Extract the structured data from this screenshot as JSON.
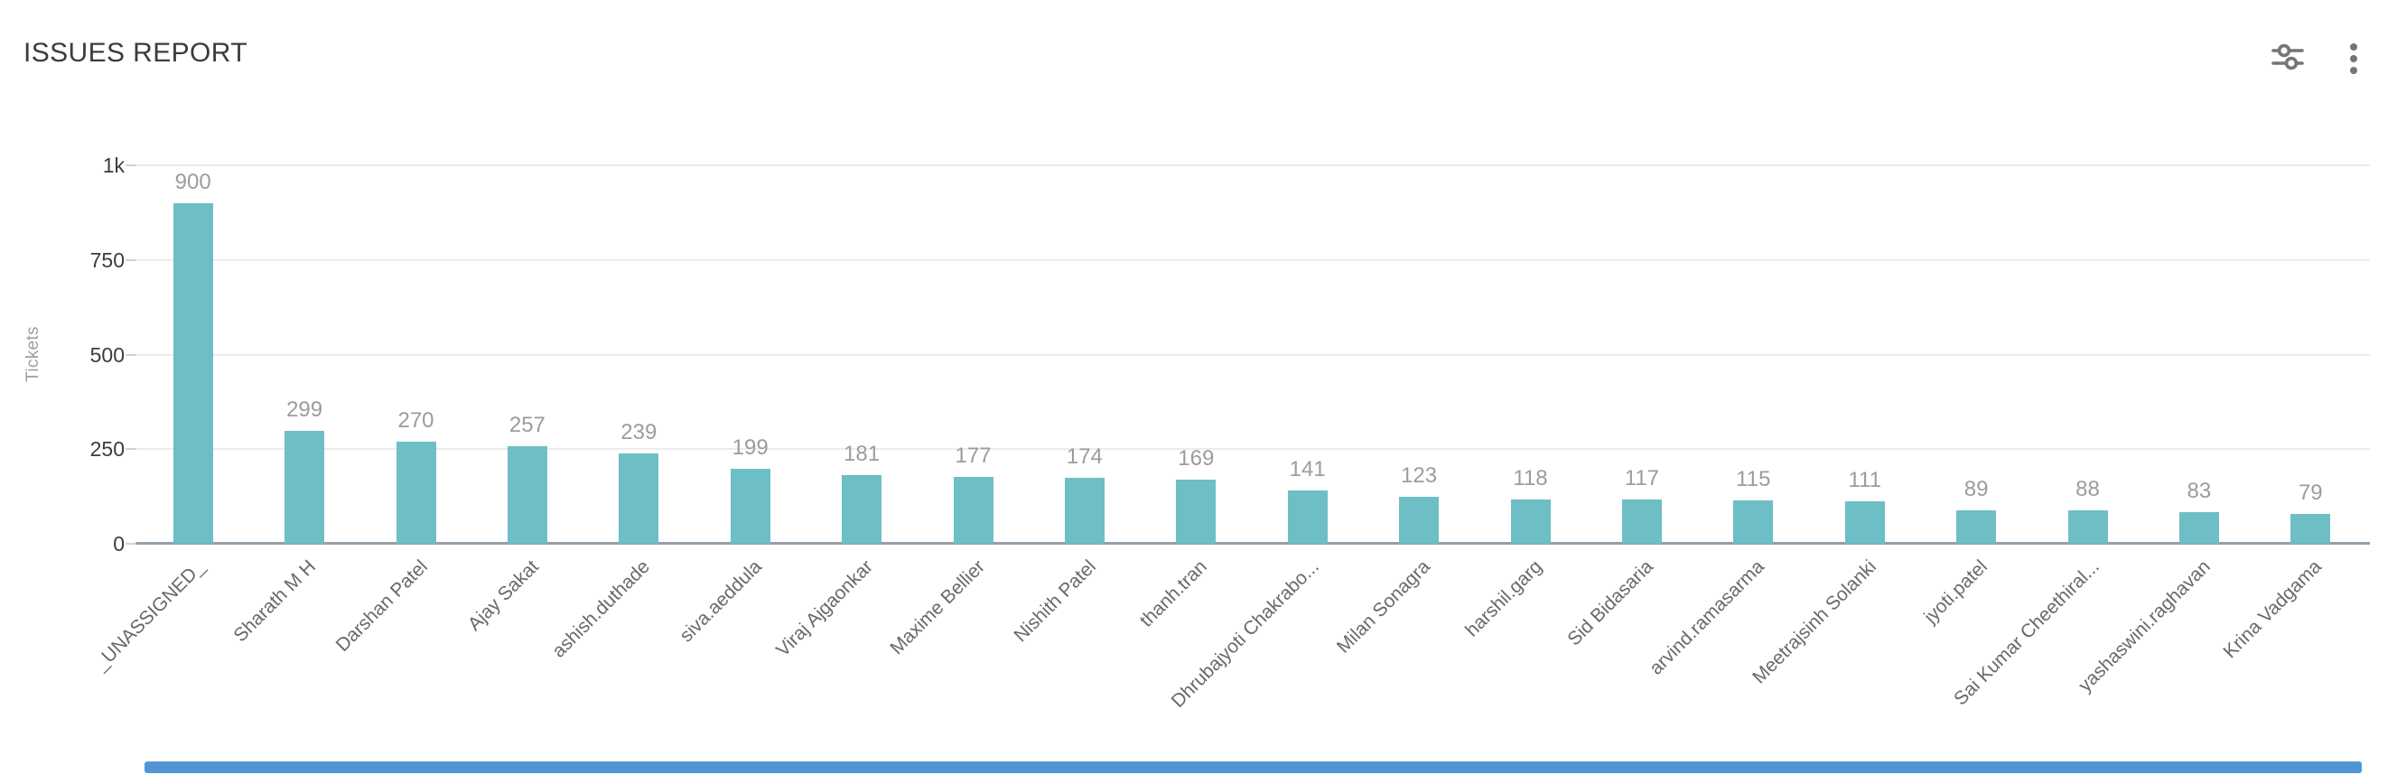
{
  "header": {
    "title": "ISSUES REPORT",
    "filter_icon": "sliders-icon",
    "menu_icon": "kebab-menu-icon"
  },
  "chart_data": {
    "type": "bar",
    "title": "ISSUES REPORT",
    "xlabel": "",
    "ylabel": "Tickets",
    "ylim": [
      0,
      1000
    ],
    "ytick_values": [
      0,
      250,
      500,
      750,
      1000
    ],
    "ytick_labels": [
      "0",
      "250",
      "500",
      "750",
      "1k"
    ],
    "grid": "horizontal",
    "legend": "none",
    "value_labels_shown": true,
    "categories": [
      "_UNASSIGNED_",
      "Sharath M H",
      "Darshan Patel",
      "Ajay Sakat",
      "ashish.duthade",
      "siva.aeddula",
      "Viraj Ajgaonkar",
      "Maxime Bellier",
      "Nishith Patel",
      "thanh.tran",
      "Dhrubajyoti Chakrabo...",
      "Milan Sonagra",
      "harshil.garg",
      "Sid Bidasaria",
      "arvind.ramasarma",
      "Meetrajsinh Solanki",
      "jyoti.patel",
      "Sai Kumar Cheethiral...",
      "yashaswini.raghavan",
      "Krina Vadgama"
    ],
    "values": [
      900,
      299,
      270,
      257,
      239,
      199,
      181,
      177,
      174,
      169,
      141,
      123,
      118,
      117,
      115,
      111,
      89,
      88,
      83,
      79
    ]
  },
  "colors": {
    "background": "#ffffff",
    "bar": "#6ebec6",
    "axis_line": "#93a0ab",
    "gridline": "#ececec",
    "title_text": "#3c3c3c",
    "tick_text": "#3c3c3c",
    "value_label_text": "#9c9c9c",
    "category_text": "#696969",
    "axis_title_text": "#9e9e9e",
    "icon": "#757575",
    "scrollbar": "#5295d5"
  }
}
